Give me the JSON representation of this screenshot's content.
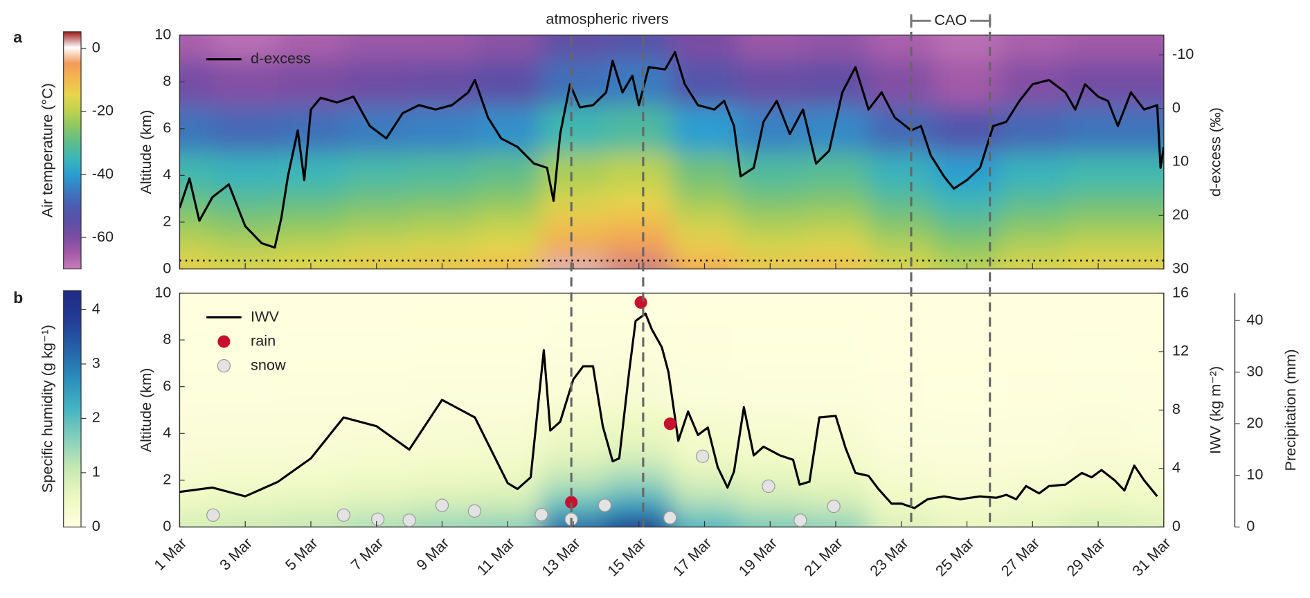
{
  "chart_data": [
    {
      "type": "heatmap",
      "panel_label": "a",
      "ylabel": "Altitude (km)",
      "y2label": "d-excess (‰)",
      "colorbar_label": "Air temperature (°C)",
      "xlim": [
        1,
        31
      ],
      "ylim": [
        0,
        10
      ],
      "yticks": [
        0,
        2,
        4,
        6,
        8,
        10
      ],
      "y2lim": [
        30,
        -13.7
      ],
      "y2ticks": [
        30,
        20,
        10,
        0,
        -10
      ],
      "clim": [
        -70,
        5.3
      ],
      "cticks": [
        0,
        -20,
        -40,
        -60
      ],
      "colormap": [
        "#c77dbb",
        "#a35aa8",
        "#7b4ea3",
        "#5b4fa6",
        "#4a5db0",
        "#3a7cc0",
        "#2a9fd0",
        "#3bb7b8",
        "#5ebd8c",
        "#8cc763",
        "#bfd250",
        "#e6d54c",
        "#f3b950",
        "#f29a5a",
        "#ffffff",
        "#9e1a1a"
      ],
      "field": {
        "x": [
          1,
          3,
          5,
          7,
          9,
          11,
          13,
          15,
          17,
          19,
          21,
          23,
          25,
          27,
          29,
          31
        ],
        "y": [
          0,
          1,
          2,
          3,
          4,
          6,
          8,
          10
        ],
        "values": [
          [
            -14,
            -16,
            -15,
            -13,
            -12,
            -10,
            2,
            3,
            -8,
            -12,
            -11,
            -16,
            -20,
            -16,
            -14,
            -14
          ],
          [
            -19,
            -21,
            -20,
            -18,
            -17,
            -15,
            -7,
            -5,
            -13,
            -17,
            -16,
            -21,
            -25,
            -21,
            -19,
            -19
          ],
          [
            -24,
            -26,
            -25,
            -23,
            -22,
            -20,
            -12,
            -10,
            -18,
            -22,
            -21,
            -26,
            -30,
            -26,
            -24,
            -24
          ],
          [
            -29,
            -31,
            -30,
            -28,
            -27,
            -25,
            -17,
            -15,
            -23,
            -27,
            -26,
            -31,
            -35,
            -31,
            -29,
            -29
          ],
          [
            -34,
            -36,
            -35,
            -33,
            -32,
            -30,
            -22,
            -20,
            -28,
            -32,
            -31,
            -36,
            -40,
            -36,
            -34,
            -34
          ],
          [
            -46,
            -48,
            -47,
            -45,
            -44,
            -42,
            -34,
            -32,
            -40,
            -44,
            -43,
            -48,
            -52,
            -48,
            -46,
            -46
          ],
          [
            -59,
            -61,
            -60,
            -58,
            -57,
            -55,
            -47,
            -45,
            -53,
            -57,
            -56,
            -61,
            -65,
            -61,
            -59,
            -59
          ],
          [
            -66,
            -68,
            -66,
            -64,
            -64,
            -62,
            -56,
            -54,
            -60,
            -64,
            -63,
            -66,
            -68,
            -66,
            -65,
            -65
          ]
        ]
      },
      "series": [
        {
          "name": "d-excess",
          "color": "#000000",
          "axis": "y2",
          "x": [
            1.0,
            1.3,
            1.6,
            2.0,
            2.5,
            3.0,
            3.5,
            3.9,
            4.1,
            4.3,
            4.6,
            4.8,
            5.0,
            5.3,
            5.8,
            6.3,
            6.8,
            7.3,
            7.8,
            8.3,
            8.8,
            9.3,
            9.8,
            10.0,
            10.4,
            10.8,
            11.3,
            11.8,
            12.2,
            12.4,
            12.6,
            12.9,
            13.2,
            13.6,
            14.0,
            14.2,
            14.5,
            14.8,
            15.0,
            15.3,
            15.8,
            16.1,
            16.4,
            16.8,
            17.3,
            17.6,
            17.9,
            18.1,
            18.5,
            18.8,
            19.2,
            19.6,
            20.0,
            20.4,
            20.8,
            21.2,
            21.6,
            22.0,
            22.4,
            22.8,
            23.3,
            23.6,
            23.9,
            24.3,
            24.6,
            25.0,
            25.4,
            25.8,
            26.2,
            26.6,
            27.0,
            27.5,
            28.0,
            28.3,
            28.6,
            29.0,
            29.3,
            29.6,
            30.0,
            30.4,
            30.8,
            30.9,
            31.0
          ],
          "values": [
            18.6,
            13.1,
            21,
            16.6,
            14.2,
            22,
            25.2,
            26,
            20.5,
            12.7,
            4.1,
            13.4,
            0.2,
            -2,
            -1.1,
            -2.2,
            3.3,
            5.6,
            0.9,
            -0.6,
            0.2,
            -0.6,
            -3,
            -5.3,
            1.7,
            5.6,
            7.2,
            10.3,
            11.1,
            17.3,
            4.8,
            -4.5,
            -0.2,
            -0.6,
            -3,
            -8.9,
            -3,
            -6.1,
            -0.6,
            -7.7,
            -7.3,
            -10.5,
            -4.5,
            -0.6,
            0.2,
            -1.4,
            3.3,
            12.7,
            11.1,
            2.5,
            -1.4,
            4.8,
            0.2,
            10.3,
            7.9,
            -3,
            -7.7,
            0.2,
            -3,
            1.7,
            4.1,
            3.3,
            8.8,
            12.7,
            15,
            13.4,
            11.1,
            3.3,
            2.5,
            -1.4,
            -4.5,
            -5.3,
            -3,
            0.2,
            -4.5,
            -2.2,
            -1.4,
            3.3,
            -3,
            0.2,
            -0.6,
            11.1,
            7.2
          ]
        }
      ],
      "hline": 0.36,
      "event_lines": [
        12.94,
        15.13,
        23.3,
        25.7
      ],
      "annotations": [
        "atmospheric rivers",
        "CAO"
      ]
    },
    {
      "type": "heatmap",
      "panel_label": "b",
      "ylabel": "Altitude (km)",
      "y2label": "IWV (kg m⁻²)",
      "y3label": "Precipitation (mm)",
      "colorbar_label": "Specific humidity (g kg⁻¹)",
      "xlim": [
        1,
        31
      ],
      "xticks": [
        {
          "value": 1,
          "label": "1 Mar"
        },
        {
          "value": 3,
          "label": "3 Mar"
        },
        {
          "value": 5,
          "label": "5 Mar"
        },
        {
          "value": 7,
          "label": "7 Mar"
        },
        {
          "value": 9,
          "label": "9 Mar"
        },
        {
          "value": 11,
          "label": "11 Mar"
        },
        {
          "value": 13,
          "label": "13 Mar"
        },
        {
          "value": 15,
          "label": "15 Mar"
        },
        {
          "value": 17,
          "label": "17 Mar"
        },
        {
          "value": 19,
          "label": "19 Mar"
        },
        {
          "value": 21,
          "label": "21 Mar"
        },
        {
          "value": 23,
          "label": "23 Mar"
        },
        {
          "value": 25,
          "label": "25 Mar"
        },
        {
          "value": 27,
          "label": "27 Mar"
        },
        {
          "value": 29,
          "label": "29 Mar"
        },
        {
          "value": 31,
          "label": "31 Mar"
        }
      ],
      "ylim": [
        0,
        10
      ],
      "yticks": [
        0,
        2,
        4,
        6,
        8,
        10
      ],
      "y2lim": [
        0,
        16
      ],
      "y2ticks": [
        0,
        4,
        8,
        12,
        16
      ],
      "y3lim": [
        0,
        45.3
      ],
      "y3ticks": [
        0,
        10,
        20,
        30,
        40
      ],
      "clim": [
        0,
        4.35
      ],
      "cticks": [
        0,
        1,
        2,
        3,
        4
      ],
      "colormap": [
        "#ffffe0",
        "#edf8c0",
        "#c6e8b4",
        "#86cfbb",
        "#45b4c2",
        "#2a8fbd",
        "#2563a8",
        "#243c97",
        "#1f2a84"
      ],
      "field": {
        "x": [
          1,
          3,
          5,
          7,
          9,
          11,
          13,
          15,
          17,
          19,
          21,
          23,
          25,
          27,
          29,
          31
        ],
        "y": [
          0,
          1,
          2,
          3,
          4,
          6,
          8,
          10
        ],
        "values": [
          [
            0.9,
            1.0,
            1.1,
            1.3,
            1.5,
            1.6,
            3.2,
            4.0,
            2.2,
            1.8,
            1.6,
            0.8,
            0.6,
            0.7,
            0.9,
            0.8
          ],
          [
            0.55,
            0.61,
            0.67,
            0.79,
            0.92,
            0.98,
            1.95,
            2.44,
            1.34,
            1.1,
            0.98,
            0.49,
            0.37,
            0.43,
            0.55,
            0.49
          ],
          [
            0.33,
            0.37,
            0.41,
            0.48,
            0.56,
            0.59,
            1.18,
            1.48,
            0.81,
            0.67,
            0.59,
            0.3,
            0.22,
            0.26,
            0.33,
            0.3
          ],
          [
            0.2,
            0.22,
            0.24,
            0.29,
            0.33,
            0.35,
            0.7,
            0.88,
            0.48,
            0.4,
            0.35,
            0.18,
            0.13,
            0.15,
            0.2,
            0.18
          ],
          [
            0.13,
            0.14,
            0.15,
            0.18,
            0.21,
            0.22,
            0.45,
            0.56,
            0.31,
            0.25,
            0.22,
            0.11,
            0.08,
            0.1,
            0.13,
            0.11
          ],
          [
            0.05,
            0.05,
            0.06,
            0.07,
            0.08,
            0.08,
            0.16,
            0.2,
            0.11,
            0.09,
            0.08,
            0.04,
            0.03,
            0.04,
            0.05,
            0.04
          ],
          [
            0.02,
            0.02,
            0.02,
            0.02,
            0.03,
            0.03,
            0.06,
            0.07,
            0.04,
            0.03,
            0.03,
            0.01,
            0.01,
            0.01,
            0.02,
            0.01
          ],
          [
            0.01,
            0.01,
            0.01,
            0.01,
            0.01,
            0.01,
            0.02,
            0.02,
            0.01,
            0.01,
            0.01,
            0.01,
            0.01,
            0.01,
            0.01,
            0.01
          ]
        ]
      },
      "series": [
        {
          "name": "IWV",
          "color": "#000000",
          "axis": "y2",
          "kind": "line",
          "x": [
            1.0,
            2.0,
            3.0,
            4.0,
            5.0,
            6.0,
            7.0,
            8.0,
            9.0,
            10.0,
            11.0,
            11.3,
            11.7,
            12.1,
            12.3,
            12.6,
            13.0,
            13.3,
            13.6,
            13.9,
            14.2,
            14.4,
            14.7,
            14.9,
            15.2,
            15.4,
            15.7,
            15.9,
            16.2,
            16.5,
            16.8,
            17.1,
            17.4,
            17.7,
            17.9,
            18.2,
            18.5,
            18.8,
            19.3,
            19.7,
            19.9,
            20.2,
            20.5,
            21.0,
            21.3,
            21.6,
            22.0,
            22.3,
            22.7,
            23.0,
            23.4,
            23.8,
            24.3,
            24.8,
            25.4,
            25.9,
            26.2,
            26.5,
            26.8,
            27.2,
            27.5,
            28.0,
            28.5,
            28.8,
            29.1,
            29.5,
            29.8,
            30.1,
            30.4,
            30.8
          ],
          "values": [
            2.4,
            2.7,
            2.1,
            3.1,
            4.7,
            7.5,
            6.9,
            5.3,
            8.7,
            7.5,
            3.0,
            2.6,
            3.4,
            12.1,
            6.6,
            7.2,
            10.1,
            11.0,
            11.0,
            6.9,
            4.5,
            4.7,
            10.6,
            14.1,
            14.6,
            13.5,
            12.3,
            10.6,
            5.9,
            7.9,
            6.3,
            6.8,
            4.1,
            2.7,
            3.8,
            8.2,
            4.9,
            5.5,
            4.9,
            4.6,
            2.9,
            3.1,
            7.5,
            7.6,
            5.4,
            3.7,
            3.5,
            2.6,
            1.6,
            1.6,
            1.3,
            1.9,
            2.1,
            1.9,
            2.1,
            2.0,
            2.2,
            1.9,
            2.8,
            2.3,
            2.8,
            2.9,
            3.7,
            3.4,
            3.9,
            3.2,
            2.5,
            4.2,
            3.2,
            2.1
          ]
        },
        {
          "name": "rain",
          "color": "#c8102e",
          "axis": "y3",
          "kind": "scatter",
          "x": [
            12.94,
            15.06,
            15.95
          ],
          "values": [
            4.8,
            43.5,
            20.0
          ]
        },
        {
          "name": "snow",
          "color": "#e3e3e3",
          "axis": "y3",
          "kind": "scatter",
          "x": [
            2.02,
            6.0,
            7.04,
            8.0,
            9.0,
            9.99,
            12.03,
            12.94,
            13.96,
            15.95,
            16.94,
            18.95,
            19.92,
            20.94
          ],
          "values": [
            2.3,
            2.3,
            1.5,
            1.3,
            4.2,
            3.1,
            2.4,
            1.5,
            4.2,
            1.8,
            13.7,
            7.9,
            1.3,
            4.0
          ]
        }
      ]
    }
  ]
}
